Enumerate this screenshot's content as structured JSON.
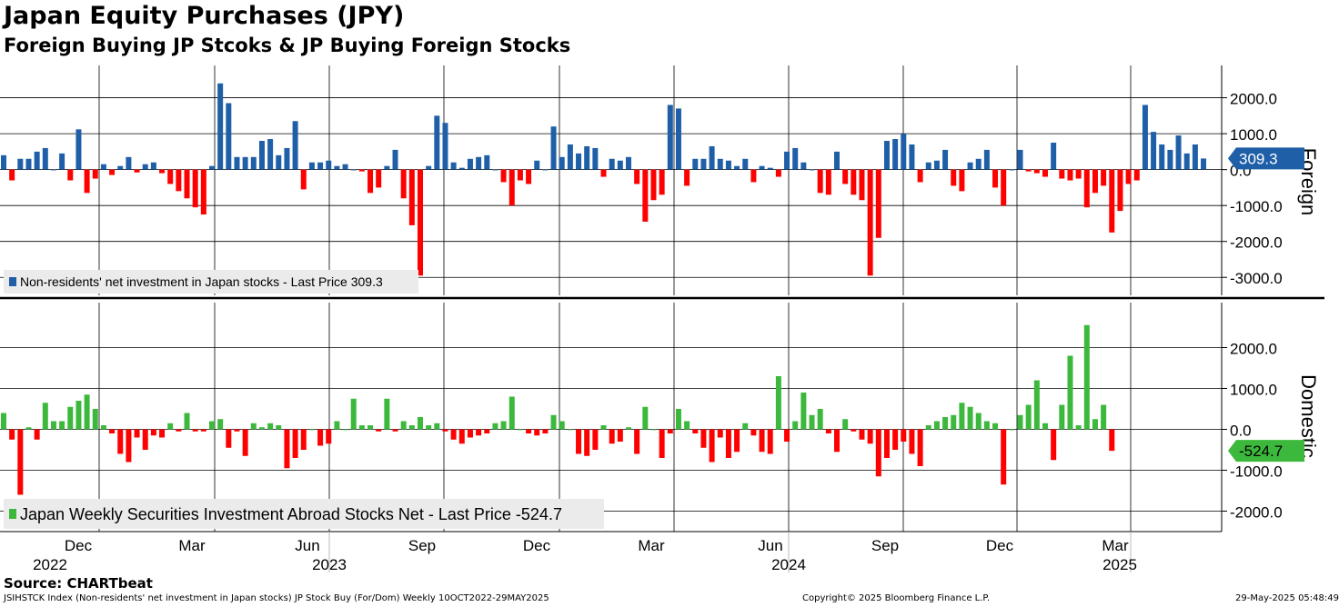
{
  "title": "Japan Equity Purchases (JPY)",
  "subtitle": "Foreign Buying JP Stcoks & JP Buying Foreign Stocks",
  "source": "Source: CHARTbeat",
  "footer": {
    "left": "JSIHSTCK Index (Non-residents' net investment in Japan stocks) JP Stock Buy (For/Dom)  Weekly 10OCT2022-29MAY2025",
    "middle": "Copyright© 2025 Bloomberg Finance L.P.",
    "right": "29-May-2025 05:48:49"
  },
  "colors": {
    "positive_foreign": "#1f5fa8",
    "negative": "#ff0000",
    "positive_domestic": "#3cb93c",
    "label_foreign_bg": "#1f5fa8",
    "label_domestic_bg": "#3cb93c"
  },
  "chart_data": [
    {
      "type": "bar",
      "name": "foreign",
      "side_label": "Foreign",
      "legend": "Non-residents' net investment in Japan stocks - Last Price 309.3",
      "last_value_label": "309.3",
      "ylim": [
        -3500,
        2900
      ],
      "yticks": [
        2000,
        1000,
        0,
        -1000,
        -2000,
        -3000
      ],
      "ytick_labels": [
        "2000.0",
        "1000.0",
        "0.0",
        "-1000.0",
        "-2000.0",
        "-3000.0"
      ],
      "values": [
        400,
        -300,
        300,
        300,
        500,
        600,
        0,
        450,
        -300,
        1120,
        -650,
        -250,
        150,
        -150,
        100,
        350,
        -80,
        150,
        200,
        -100,
        -400,
        -600,
        -800,
        -1050,
        -1250,
        100,
        2400,
        1850,
        350,
        350,
        350,
        800,
        850,
        400,
        600,
        1350,
        -550,
        200,
        200,
        250,
        100,
        150,
        0,
        -50,
        -650,
        -500,
        100,
        550,
        -800,
        -1550,
        -2950,
        100,
        1500,
        1300,
        200,
        50,
        300,
        350,
        400,
        0,
        -350,
        -1000,
        -300,
        -400,
        250,
        0,
        1200,
        350,
        700,
        450,
        650,
        600,
        -200,
        300,
        250,
        350,
        -400,
        -1450,
        -850,
        -700,
        1800,
        1700,
        -450,
        300,
        300,
        650,
        300,
        250,
        100,
        300,
        -350,
        100,
        50,
        -200,
        500,
        600,
        200,
        0,
        -650,
        -700,
        500,
        -400,
        -700,
        -850,
        -2950,
        -1900,
        800,
        850,
        1000,
        700,
        -350,
        200,
        250,
        550,
        -450,
        -600,
        200,
        300,
        550,
        -500,
        -1000,
        0,
        550,
        -50,
        -100,
        -200,
        750,
        -250,
        -300,
        -250,
        -1050,
        -650,
        -450,
        -1750,
        -1150,
        -400,
        -300,
        1800,
        1050,
        700,
        550,
        950,
        450,
        700,
        309.3
      ]
    },
    {
      "type": "bar",
      "name": "domestic",
      "side_label": "Domestic",
      "legend": "Japan Weekly Securities Investment Abroad Stocks Net - Last Price -524.7",
      "last_value_label": "-524.7",
      "ylim": [
        -2500,
        3100
      ],
      "yticks": [
        2000,
        1000,
        0,
        -1000,
        -2000
      ],
      "ytick_labels": [
        "2000.0",
        "1000.0",
        "0.0",
        "-1000.0",
        "-2000.0"
      ],
      "values": [
        400,
        -250,
        -1600,
        50,
        -250,
        650,
        200,
        200,
        550,
        700,
        850,
        500,
        100,
        -100,
        -600,
        -800,
        -200,
        -500,
        -150,
        -200,
        150,
        -50,
        400,
        -50,
        -50,
        200,
        250,
        -450,
        -50,
        -650,
        150,
        50,
        150,
        100,
        -950,
        -700,
        -500,
        0,
        -400,
        -350,
        200,
        0,
        750,
        100,
        100,
        -50,
        750,
        -50,
        200,
        100,
        300,
        100,
        150,
        -50,
        -250,
        -350,
        -200,
        -150,
        -100,
        150,
        200,
        800,
        0,
        -100,
        -150,
        -100,
        350,
        200,
        0,
        -600,
        -650,
        -500,
        100,
        -350,
        -300,
        50,
        -600,
        550,
        0,
        -700,
        -100,
        500,
        200,
        -100,
        -450,
        -800,
        -200,
        -700,
        -550,
        150,
        -150,
        -550,
        -600,
        1300,
        -300,
        200,
        900,
        350,
        500,
        -100,
        -550,
        250,
        -50,
        -250,
        -350,
        -1150,
        -700,
        -500,
        -300,
        -600,
        -900,
        100,
        200,
        300,
        350,
        650,
        550,
        400,
        200,
        150,
        -1350,
        0,
        350,
        600,
        1200,
        150,
        -750,
        600,
        1800,
        100,
        2550,
        250,
        600,
        -524.7
      ]
    }
  ],
  "xaxis": {
    "month_labels": [
      "Dec",
      "Mar",
      "Jun",
      "Sep",
      "Dec",
      "Mar",
      "Jun",
      "Sep",
      "Dec",
      "Mar"
    ],
    "year_labels": [
      "2022",
      "2023",
      "2024",
      "2025"
    ]
  }
}
